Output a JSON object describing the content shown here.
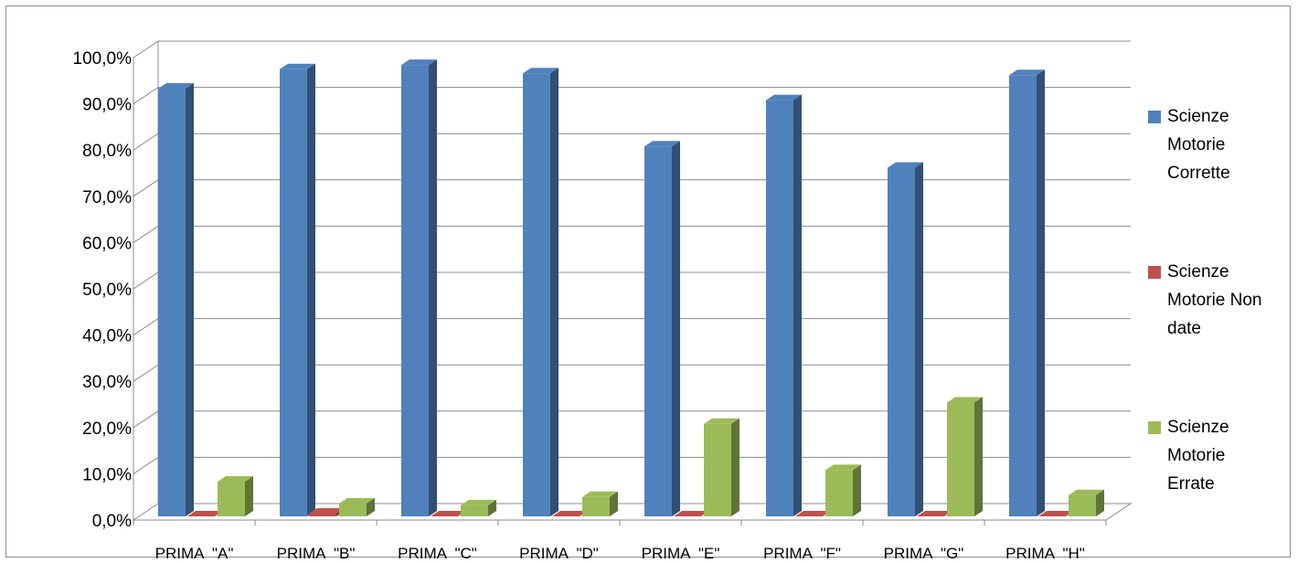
{
  "chart_data": {
    "type": "bar",
    "categories": [
      "PRIMA  \"A\"",
      "PRIMA  \"B\"",
      "PRIMA  \"C\"",
      "PRIMA  \"D\"",
      "PRIMA  \"E\"",
      "PRIMA  \"F\"",
      "PRIMA  \"G\"",
      "PRIMA  \"H\""
    ],
    "series": [
      {
        "name": "Scienze Motorie Corrette",
        "legend_lines": [
          "Scienze",
          "Motorie",
          "Corrette"
        ],
        "color": "#4f81bd",
        "values": [
          92.5,
          96.7,
          97.6,
          95.8,
          80.0,
          90.0,
          75.4,
          95.4
        ]
      },
      {
        "name": "Scienze Motorie Non date",
        "legend_lines": [
          "Scienze",
          "Motorie Non",
          "date"
        ],
        "color": "#c0504d",
        "values": [
          0.0,
          0.6,
          0.0,
          0.0,
          0.0,
          0.0,
          0.0,
          0.0
        ]
      },
      {
        "name": "Scienze Motorie Errate",
        "legend_lines": [
          "Scienze",
          "Motorie",
          "Errate"
        ],
        "color": "#9bbb59",
        "values": [
          7.5,
          2.8,
          2.4,
          4.2,
          20.0,
          10.0,
          24.6,
          4.6
        ]
      }
    ],
    "yticks": [
      "0,0%",
      "10,0%",
      "20,0%",
      "30,0%",
      "40,0%",
      "50,0%",
      "60,0%",
      "70,0%",
      "80,0%",
      "90,0%",
      "100,0%"
    ],
    "ylim": [
      0,
      100
    ],
    "ystep": 10,
    "grid": true,
    "legend_position": "right",
    "title": "",
    "xlabel": "",
    "ylabel": ""
  }
}
